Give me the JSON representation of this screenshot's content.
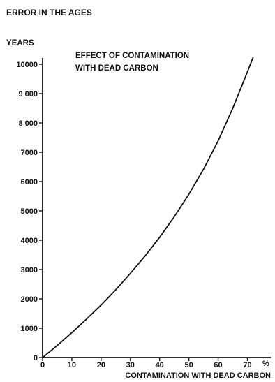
{
  "chart_data": {
    "type": "line",
    "title_lines": [
      "EFFECT OF CONTAMINATION",
      "WITH DEAD CARBON"
    ],
    "ylabel_top": "ERROR IN THE AGES",
    "ylabel_unit": "YEARS",
    "xlabel": "CONTAMINATION  WITH  DEAD  CARBON",
    "x_unit": "%",
    "xlim": [
      0,
      78
    ],
    "ylim": [
      0,
      10000
    ],
    "x_ticks": [
      {
        "value": 0,
        "label": "0"
      },
      {
        "value": 10,
        "label": "10"
      },
      {
        "value": 20,
        "label": "20"
      },
      {
        "value": 30,
        "label": "30"
      },
      {
        "value": 40,
        "label": "40"
      },
      {
        "value": 50,
        "label": "50"
      },
      {
        "value": 60,
        "label": "60"
      },
      {
        "value": 70,
        "label": "70"
      }
    ],
    "y_ticks": [
      {
        "value": 0,
        "label": "0"
      },
      {
        "value": 1000,
        "label": "1000"
      },
      {
        "value": 2000,
        "label": "2000"
      },
      {
        "value": 3000,
        "label": "3000"
      },
      {
        "value": 4000,
        "label": "4000"
      },
      {
        "value": 5000,
        "label": "5000"
      },
      {
        "value": 6000,
        "label": "6000"
      },
      {
        "value": 7000,
        "label": "7000"
      },
      {
        "value": 8000,
        "label": "8 000"
      },
      {
        "value": 9000,
        "label": "9 000"
      },
      {
        "value": 10000,
        "label": "10000"
      }
    ],
    "series": [
      {
        "x": [
          0,
          5,
          10,
          15,
          20,
          25,
          30,
          35,
          40,
          45,
          50,
          55,
          60,
          65,
          70,
          72
        ],
        "values": [
          0,
          410,
          850,
          1310,
          1790,
          2310,
          2870,
          3460,
          4100,
          4800,
          5570,
          6420,
          7390,
          8500,
          9740,
          10250
        ]
      }
    ],
    "grid": false
  }
}
